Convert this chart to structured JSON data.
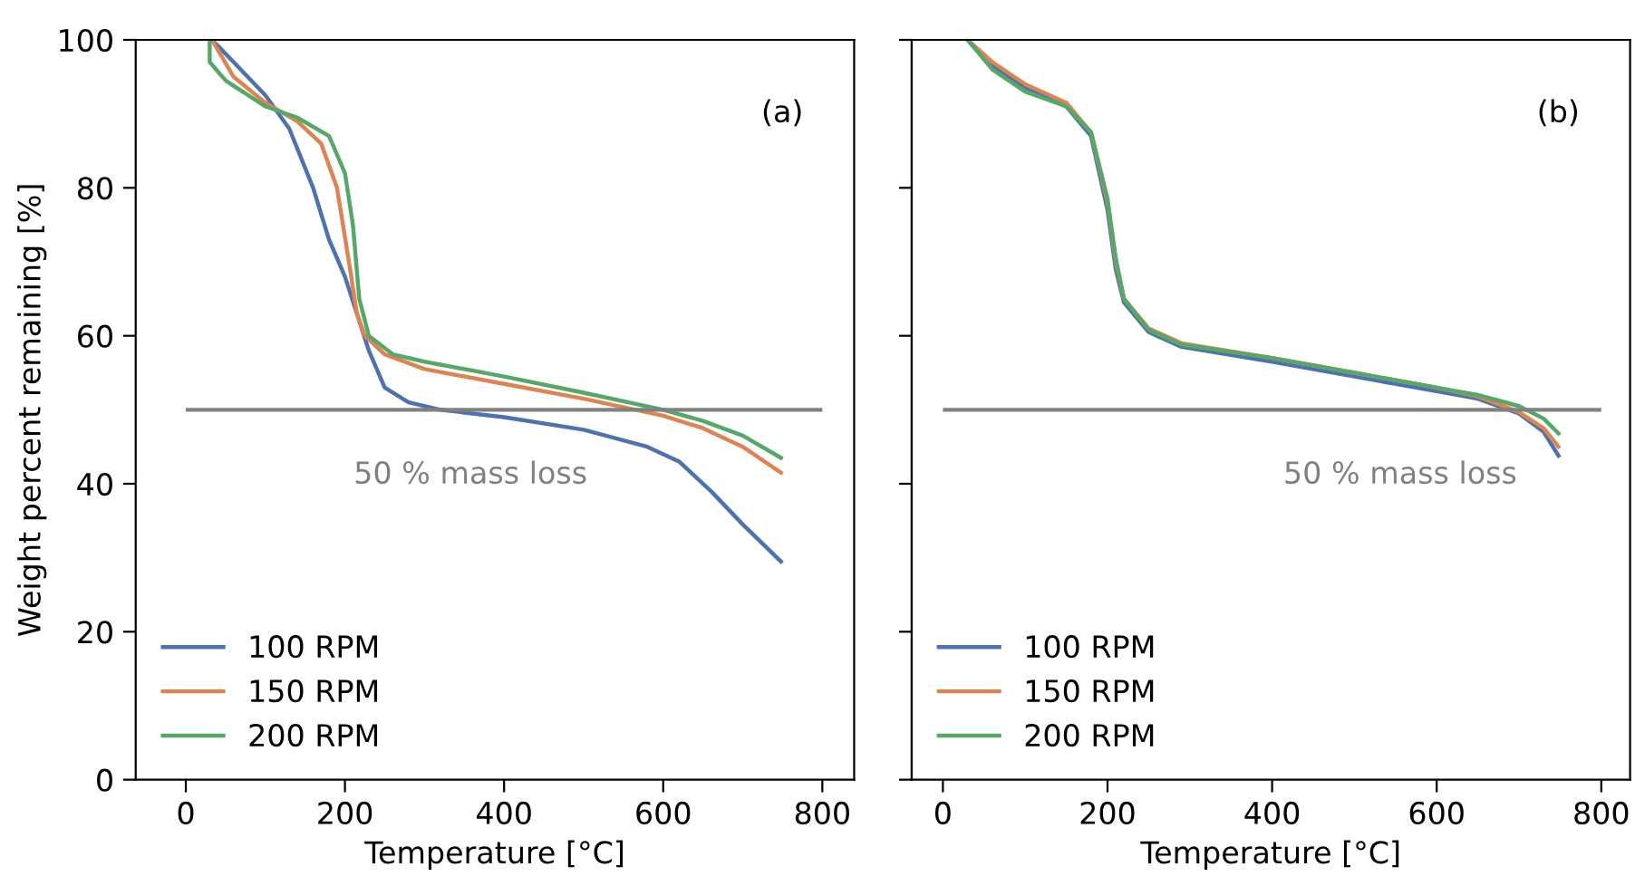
{
  "chart_data": [
    {
      "type": "line",
      "xlabel": "Temperature [°C]",
      "ylabel": "Weight percent remaining [%]",
      "xlim": [
        -63,
        840
      ],
      "ylim": [
        0,
        100
      ],
      "xticks": [
        0,
        200,
        400,
        600,
        800
      ],
      "yticks": [
        0,
        20,
        40,
        60,
        80,
        100
      ],
      "grid": false,
      "legend": "bottom left",
      "marker": "none",
      "line_style": "solid",
      "ref_lines": [
        {
          "axis": "y",
          "value": 50,
          "color": "#808080"
        }
      ],
      "annotations": [
        "(a)",
        "50 % mass loss"
      ],
      "series": [
        {
          "name": "100 RPM",
          "color": "#4c72b0",
          "x": [
            33,
            60,
            100,
            130,
            160,
            180,
            200,
            215,
            230,
            250,
            280,
            320,
            400,
            500,
            580,
            620,
            660,
            700,
            748
          ],
          "values": [
            100,
            97,
            92.5,
            88,
            80,
            73,
            68,
            63,
            58,
            53,
            51,
            50,
            49,
            47.3,
            45,
            43,
            39,
            34.5,
            29.5
          ]
        },
        {
          "name": "150 RPM",
          "color": "#dd8452",
          "x": [
            33,
            60,
            100,
            140,
            170,
            190,
            205,
            215,
            225,
            250,
            300,
            400,
            500,
            600,
            650,
            700,
            748
          ],
          "values": [
            100,
            95,
            91.5,
            89,
            86,
            80,
            70,
            63,
            60,
            57.5,
            55.5,
            53.5,
            51.5,
            49.2,
            47.5,
            45,
            41.5
          ]
        },
        {
          "name": "200 RPM",
          "color": "#55a868",
          "x": [
            30,
            30,
            50,
            100,
            140,
            180,
            200,
            210,
            218,
            230,
            260,
            300,
            400,
            500,
            600,
            650,
            700,
            748
          ],
          "values": [
            100,
            97,
            94.5,
            91,
            89.5,
            87,
            82,
            75,
            65,
            60,
            57.5,
            56.5,
            54.5,
            52.3,
            50,
            48.5,
            46.5,
            43.5
          ]
        }
      ]
    },
    {
      "type": "line",
      "xlabel": "Temperature [°C]",
      "xlim": [
        -38,
        835
      ],
      "ylim": [
        0,
        100
      ],
      "xticks": [
        0,
        200,
        400,
        600,
        800
      ],
      "yticks": [
        0,
        20,
        40,
        60,
        80,
        100
      ],
      "tick_labels": "x",
      "grid": false,
      "legend": "bottom left",
      "marker": "none",
      "line_style": "solid",
      "ref_lines": [
        {
          "axis": "y",
          "value": 50,
          "color": "#808080"
        }
      ],
      "annotations": [
        "(b)",
        "50 % mass loss"
      ],
      "series": [
        {
          "name": "100 RPM",
          "color": "#4c72b0",
          "x": [
            30,
            60,
            100,
            150,
            180,
            200,
            210,
            220,
            250,
            290,
            400,
            500,
            600,
            650,
            700,
            730,
            748
          ],
          "values": [
            100,
            96.5,
            93.5,
            91,
            87,
            77,
            69,
            64.5,
            60.5,
            58.5,
            56.5,
            54.5,
            52.5,
            51.5,
            49.5,
            47,
            43.8
          ]
        },
        {
          "name": "150 RPM",
          "color": "#dd8452",
          "x": [
            30,
            60,
            100,
            150,
            180,
            200,
            210,
            220,
            250,
            290,
            400,
            500,
            600,
            650,
            700,
            730,
            748
          ],
          "values": [
            100,
            97,
            94,
            91.5,
            87.5,
            78,
            70,
            65,
            61,
            59,
            57,
            55,
            53,
            51.8,
            49.7,
            47.5,
            45
          ]
        },
        {
          "name": "200 RPM",
          "color": "#55a868",
          "x": [
            30,
            60,
            100,
            150,
            180,
            200,
            210,
            220,
            250,
            290,
            400,
            500,
            600,
            650,
            700,
            730,
            748
          ],
          "values": [
            100,
            96,
            93,
            91,
            87.5,
            78.5,
            70.5,
            65,
            60.8,
            58.8,
            57,
            55,
            53,
            52,
            50.5,
            48.8,
            46.8
          ]
        }
      ]
    }
  ]
}
